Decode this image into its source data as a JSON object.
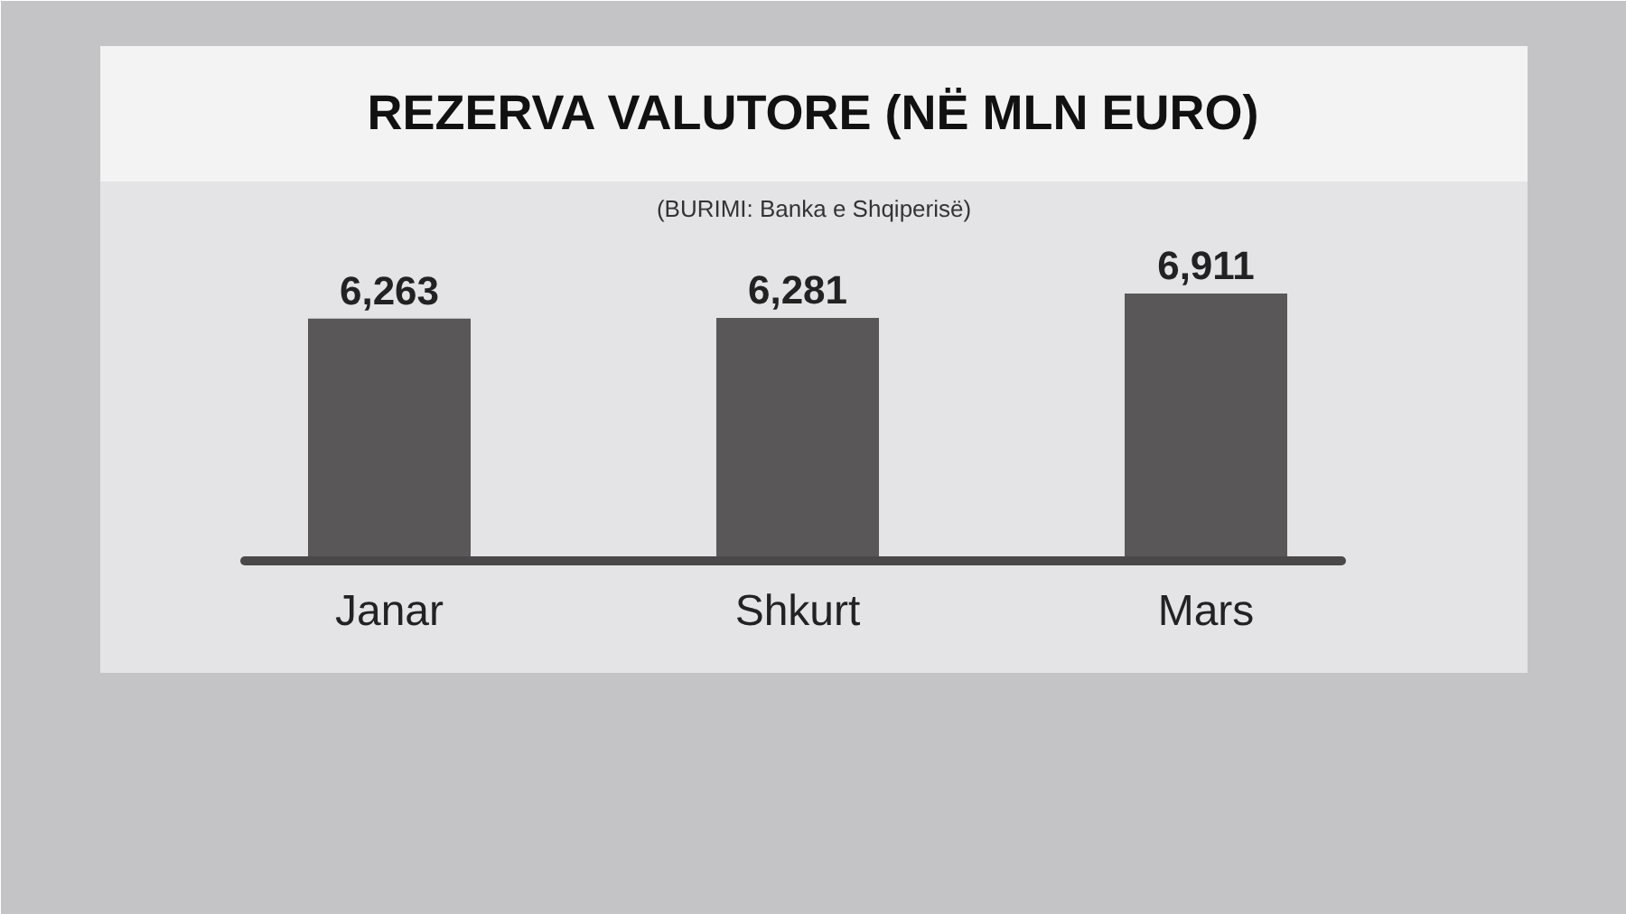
{
  "chart_data": {
    "type": "bar",
    "title": "REZERVA VALUTORE (NË MLN EURO)",
    "categories": [
      "Janar",
      "Shkurt",
      "Mars"
    ],
    "values": [
      6263,
      6281,
      6911
    ],
    "color": "#595757",
    "value_labels": [
      "6,263",
      "6,281",
      "6,911"
    ],
    "grid": false,
    "annotations": [
      "(BURIMI: Banka e Shqiperisë)"
    ]
  }
}
